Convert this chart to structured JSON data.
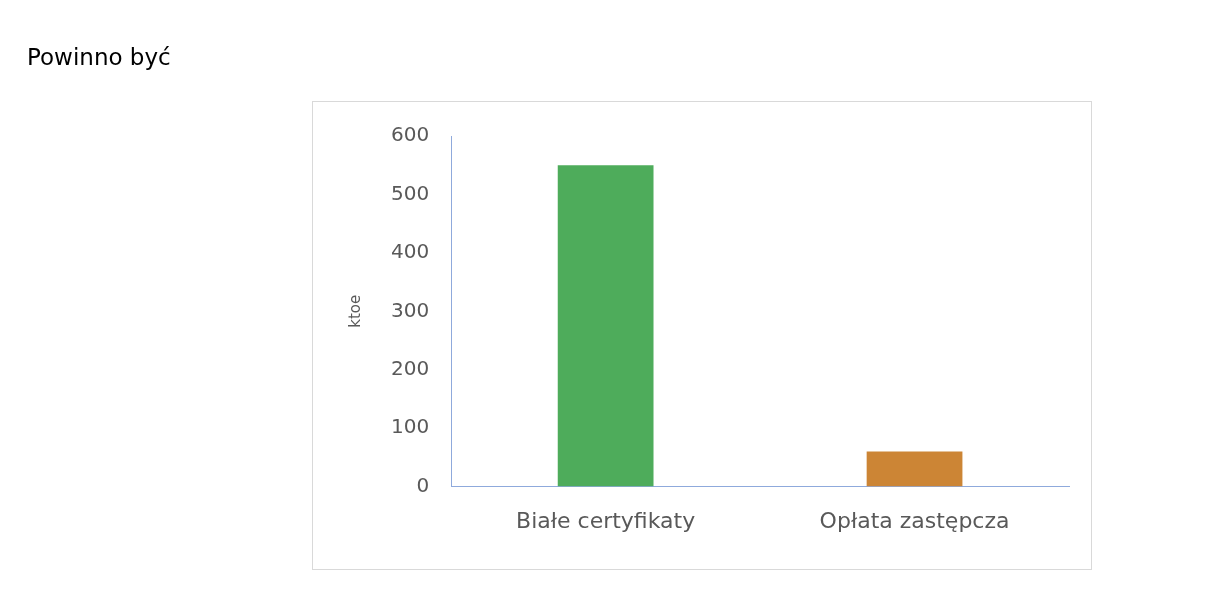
{
  "chart_data": {
    "type": "bar",
    "title": "Powinno być",
    "ylabel": "ktoe",
    "categories": [
      "Białe certyfikaty",
      "Opłata zastępcza"
    ],
    "values": [
      550,
      60
    ],
    "colors": [
      "#4eac5b",
      "#cc8535"
    ],
    "ylim": [
      0,
      600
    ],
    "yticks": [
      0,
      100,
      200,
      300,
      400,
      500,
      600
    ],
    "grid": false,
    "legend": false
  }
}
